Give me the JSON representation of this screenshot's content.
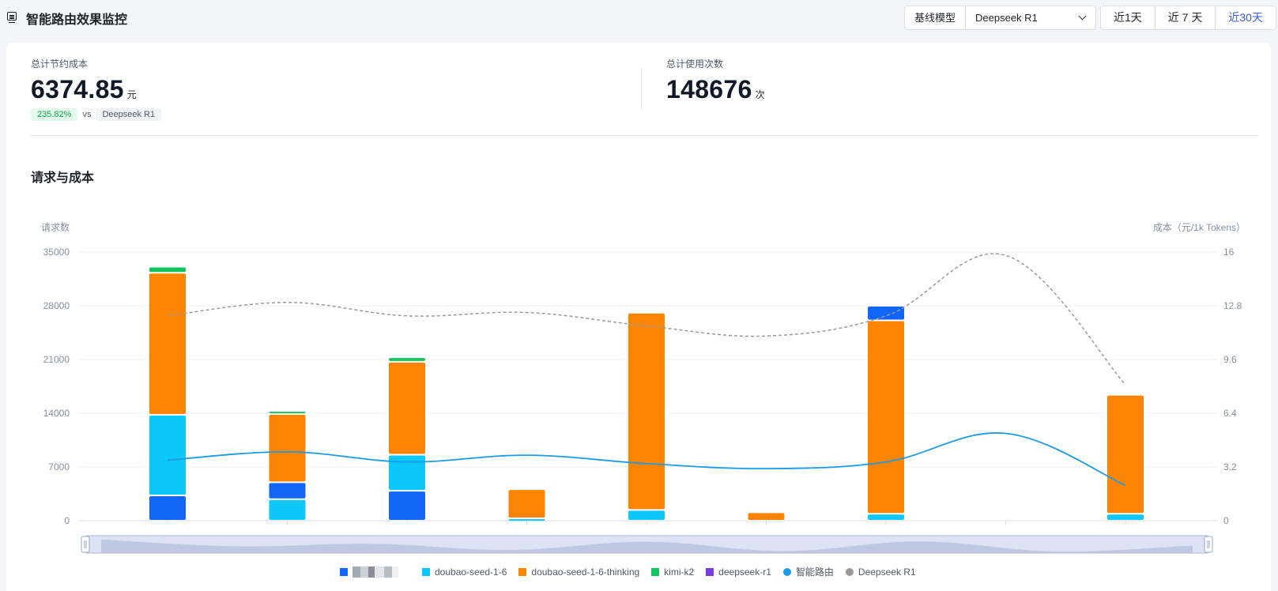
{
  "header": {
    "title": "智能路由效果监控",
    "baseline_label": "基线模型",
    "baseline_value": "Deepseek R1",
    "ranges": [
      "近1天",
      "近 7 天",
      "近30天"
    ],
    "active_range": "近30天"
  },
  "stats": {
    "savings": {
      "label": "总计节约成本",
      "value": "6374.85",
      "unit": "元",
      "percent": "235.82%",
      "vs": "vs",
      "compare_model": "Deepseek R1"
    },
    "usage": {
      "label": "总计使用次数",
      "value": "148676",
      "unit": "次"
    }
  },
  "section": {
    "title": "请求与成本"
  },
  "colors": {
    "series1": "#1366f5",
    "doubao": "#0bc7fa",
    "thinking": "#fd8400",
    "kimi": "#12c55f",
    "deepseek": "#7a3ce6",
    "router_line": "#1a9be6",
    "baseline_line": "#9a9a9a"
  },
  "chart_data": {
    "type": "bar",
    "ylabel": "请求数",
    "y2label": "成本（元/1k Tokens）",
    "ylim": [
      0,
      35000
    ],
    "y2lim": [
      0,
      16
    ],
    "yticks": [
      "0",
      "7000",
      "14000",
      "21000",
      "28000",
      "35000"
    ],
    "y2ticks": [
      "0",
      "3.2",
      "6.4",
      "9.6",
      "12.8",
      "16"
    ],
    "categories": [
      "",
      "",
      "",
      "",
      "",
      "",
      "",
      "",
      ""
    ],
    "series": [
      {
        "name": "",
        "color_key": "series1",
        "values": [
          3300,
          0,
          3900,
          0,
          0,
          0,
          0,
          0,
          0
        ]
      },
      {
        "name": "doubao-seed-1-6",
        "color_key": "doubao",
        "values": [
          10500,
          2800,
          4700,
          300,
          1400,
          0,
          900,
          0,
          900
        ]
      },
      {
        "name": "",
        "color_key": "series1",
        "values": [
          0,
          2200,
          0,
          0,
          0,
          0,
          0,
          0,
          0
        ]
      },
      {
        "name": "doubao-seed-1-6-thinking",
        "color_key": "thinking",
        "values": [
          18500,
          8900,
          12100,
          3800,
          25700,
          1100,
          25200,
          0,
          15500
        ]
      },
      {
        "name": "",
        "color_key": "series1",
        "values": [
          0,
          0,
          0,
          0,
          0,
          0,
          1900,
          0,
          0
        ]
      },
      {
        "name": "kimi-k2",
        "color_key": "kimi",
        "values": [
          800,
          400,
          600,
          0,
          0,
          0,
          0,
          0,
          0
        ]
      },
      {
        "name": "deepseek-r1",
        "color_key": "deepseek",
        "values": [
          0,
          0,
          0,
          0,
          0,
          0,
          0,
          0,
          0
        ]
      }
    ],
    "lines": [
      {
        "name": "智能路由",
        "color_key": "router_line",
        "axis": "right",
        "dashed": false,
        "values": [
          3.6,
          4.1,
          3.5,
          3.9,
          3.4,
          3.1,
          3.5,
          5.2,
          2.1
        ]
      },
      {
        "name": "Deepseek R1",
        "color_key": "baseline_line",
        "axis": "right",
        "dashed": true,
        "values": [
          12.2,
          13.0,
          12.2,
          12.4,
          11.6,
          11.0,
          12.2,
          15.8,
          8.1
        ]
      }
    ],
    "legend": [
      {
        "label": "",
        "color_key": "series1",
        "shape": "square",
        "redacted": true
      },
      {
        "label": "doubao-seed-1-6",
        "color_key": "doubao",
        "shape": "square"
      },
      {
        "label": "doubao-seed-1-6-thinking",
        "color_key": "thinking",
        "shape": "square"
      },
      {
        "label": "kimi-k2",
        "color_key": "kimi",
        "shape": "square"
      },
      {
        "label": "deepseek-r1",
        "color_key": "deepseek",
        "shape": "square"
      },
      {
        "label": "智能路由",
        "color_key": "router_line",
        "shape": "circle"
      },
      {
        "label": "Deepseek R1",
        "color_key": "baseline_line",
        "shape": "circle"
      }
    ],
    "legend_position": "bottom",
    "grid": true
  }
}
